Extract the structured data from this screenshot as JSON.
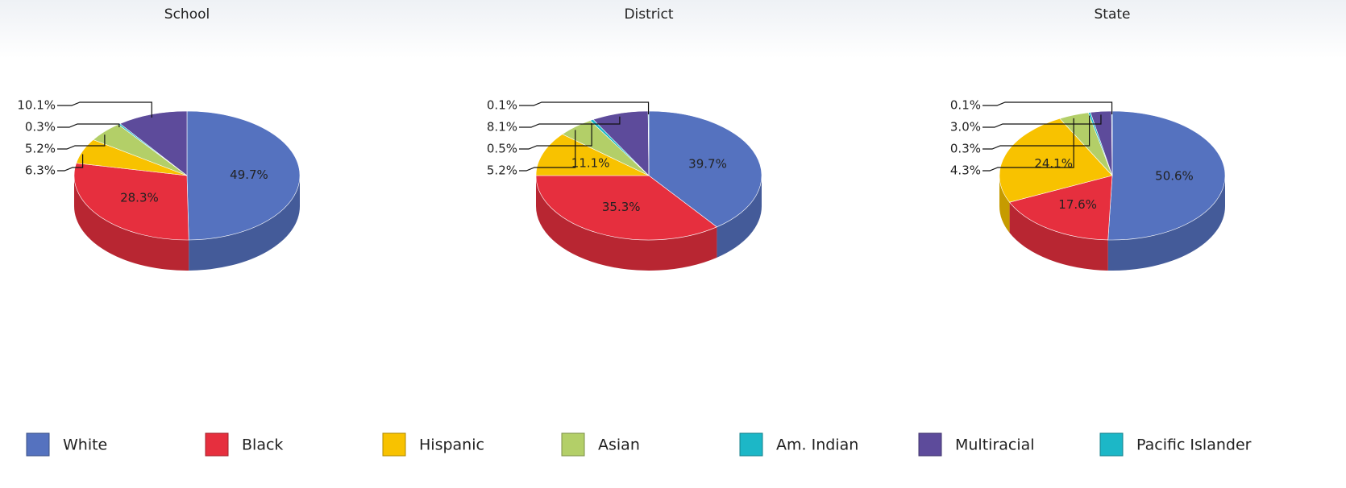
{
  "chart_data": [
    {
      "type": "pie3d",
      "title": "School",
      "categories": [
        "White",
        "Black",
        "Hispanic",
        "Asian",
        "Am. Indian",
        "Multiracial",
        "Pacific Islander"
      ],
      "colors": [
        "#5572bf",
        "#e62f3e",
        "#f8c200",
        "#b3cf68",
        "#1cb7c7",
        "#5d4b9b",
        "#1cb7c7"
      ],
      "values": [
        49.7,
        28.3,
        6.3,
        5.2,
        0.3,
        10.1,
        null
      ],
      "value_labels": [
        "49.7%",
        "28.3%",
        "6.3%",
        "5.2%",
        "0.3%",
        "10.1%",
        null
      ]
    },
    {
      "type": "pie3d",
      "title": "District",
      "categories": [
        "White",
        "Black",
        "Hispanic",
        "Asian",
        "Am. Indian",
        "Multiracial",
        "Pacific Islander"
      ],
      "colors": [
        "#5572bf",
        "#e62f3e",
        "#f8c200",
        "#b3cf68",
        "#1cb7c7",
        "#5d4b9b",
        "#1cb7c7"
      ],
      "values": [
        39.7,
        35.3,
        11.1,
        5.2,
        0.5,
        8.1,
        0.1
      ],
      "value_labels": [
        "39.7%",
        "35.3%",
        "11.1%",
        "5.2%",
        "0.5%",
        "8.1%",
        "0.1%"
      ]
    },
    {
      "type": "pie3d",
      "title": "State",
      "categories": [
        "White",
        "Black",
        "Hispanic",
        "Asian",
        "Am. Indian",
        "Multiracial",
        "Pacific Islander"
      ],
      "colors": [
        "#5572bf",
        "#e62f3e",
        "#f8c200",
        "#b3cf68",
        "#1cb7c7",
        "#5d4b9b",
        "#1cb7c7"
      ],
      "values": [
        50.6,
        17.6,
        24.1,
        4.3,
        0.3,
        3.0,
        0.1
      ],
      "value_labels": [
        "50.6%",
        "17.6%",
        "24.1%",
        "4.3%",
        "0.3%",
        "3.0%",
        "0.1%"
      ]
    }
  ]
}
